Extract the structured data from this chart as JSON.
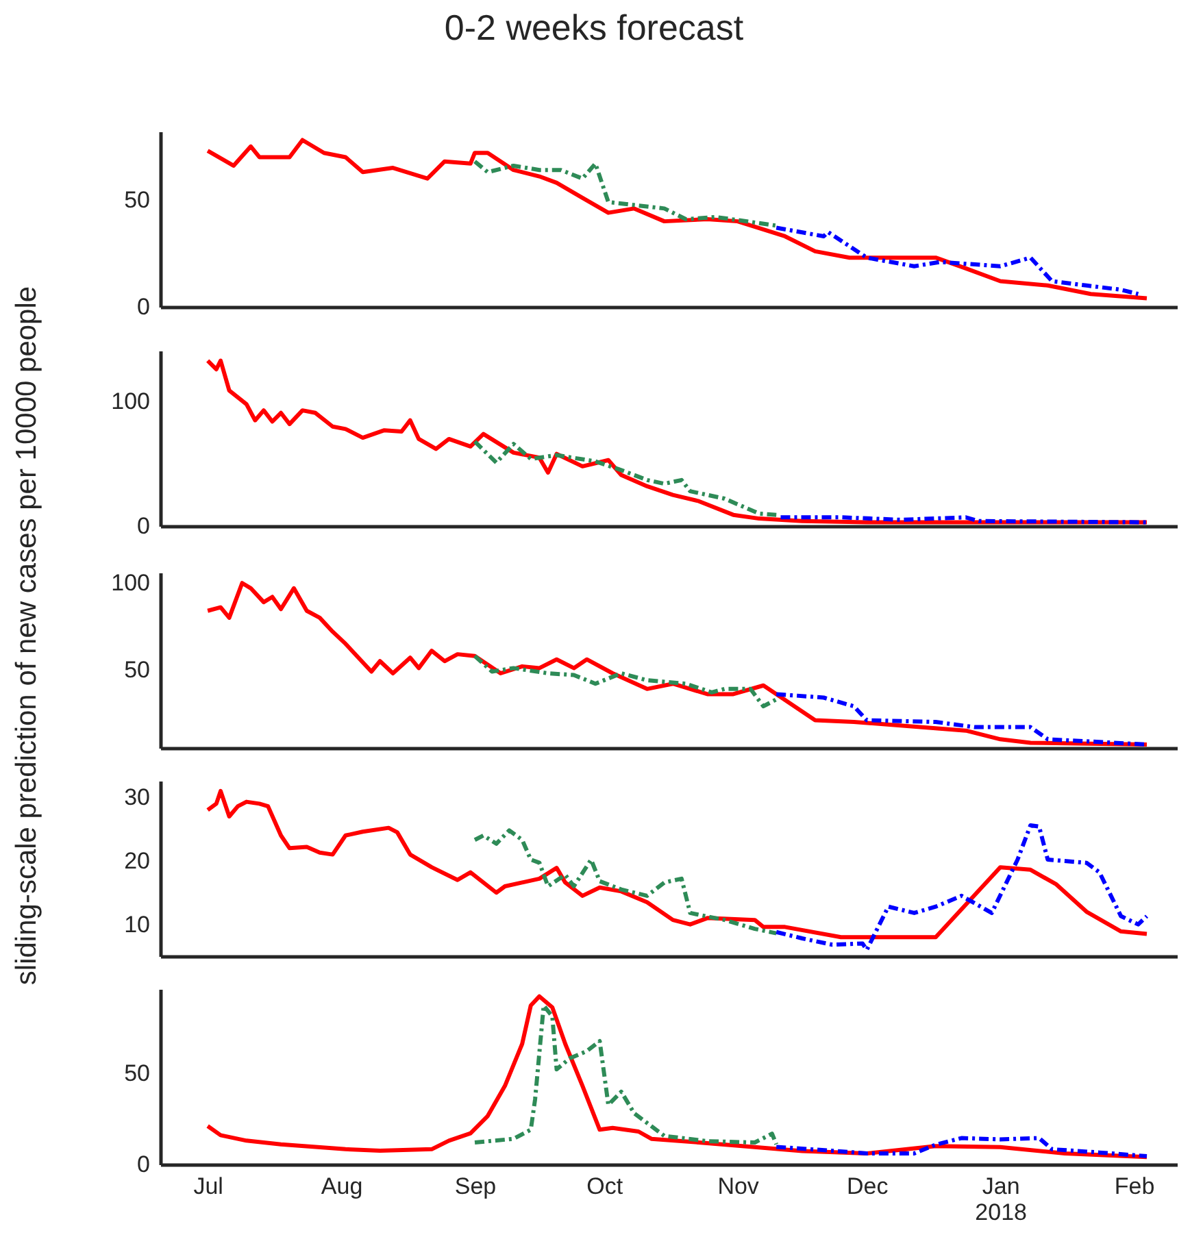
{
  "chart_data": [
    {
      "type": "line",
      "title": "0-2 weeks forecast",
      "xlim": [
        "2017-06-20",
        "2018-02-11"
      ],
      "ylim": [
        0,
        82
      ],
      "yticks": [
        0,
        50
      ],
      "tick_labels": "y",
      "series": [
        {
          "color": "#ff0000",
          "line_style": "solid",
          "x": [
            "2017-07-01",
            "2017-07-07",
            "2017-07-11",
            "2017-07-13",
            "2017-07-20",
            "2017-07-23",
            "2017-07-28",
            "2017-08-02",
            "2017-08-06",
            "2017-08-13",
            "2017-08-21",
            "2017-08-25",
            "2017-08-31",
            "2017-09-01",
            "2017-09-04",
            "2017-09-10",
            "2017-09-16",
            "2017-09-20",
            "2017-09-26",
            "2017-10-02",
            "2017-10-08",
            "2017-10-15",
            "2017-10-25",
            "2017-11-01",
            "2017-11-12",
            "2017-11-19",
            "2017-11-27",
            "2017-12-17",
            "2017-12-24",
            "2018-01-01",
            "2018-01-12",
            "2018-01-22",
            "2018-02-04"
          ],
          "values": [
            73,
            66,
            75,
            70,
            70,
            78,
            72,
            70,
            63,
            65,
            60,
            68,
            67,
            72,
            72,
            64,
            61,
            58,
            51,
            44,
            46,
            40,
            41,
            40,
            33,
            26,
            23,
            23,
            18,
            12,
            10,
            6,
            4
          ]
        },
        {
          "color": "#2e8b57",
          "line_style": "dashed",
          "x": [
            "2017-09-01",
            "2017-09-04",
            "2017-09-10",
            "2017-09-16",
            "2017-09-21",
            "2017-09-26",
            "2017-09-29",
            "2017-10-02",
            "2017-10-15",
            "2017-10-20",
            "2017-10-27",
            "2017-11-10"
          ],
          "values": [
            68,
            63,
            66,
            64,
            64,
            60,
            67,
            49,
            46,
            41,
            42,
            38
          ]
        },
        {
          "color": "#0000ff",
          "line_style": "dashed",
          "x": [
            "2017-11-10",
            "2017-11-21",
            "2017-11-22",
            "2017-12-01",
            "2017-12-12",
            "2017-12-18",
            "2018-01-01",
            "2018-01-08",
            "2018-01-13",
            "2018-01-21",
            "2018-01-29",
            "2018-02-02"
          ],
          "values": [
            37,
            33,
            35,
            23,
            19,
            21,
            19,
            23,
            12,
            10,
            8,
            6
          ]
        }
      ]
    },
    {
      "type": "line",
      "xlim": [
        "2017-06-20",
        "2018-02-11"
      ],
      "ylim": [
        0,
        141
      ],
      "yticks": [
        0,
        100
      ],
      "tick_labels": "y",
      "series": [
        {
          "color": "#ff0000",
          "line_style": "solid",
          "x": [
            "2017-07-01",
            "2017-07-03",
            "2017-07-04",
            "2017-07-06",
            "2017-07-10",
            "2017-07-12",
            "2017-07-14",
            "2017-07-16",
            "2017-07-18",
            "2017-07-20",
            "2017-07-23",
            "2017-07-26",
            "2017-07-30",
            "2017-08-02",
            "2017-08-06",
            "2017-08-11",
            "2017-08-15",
            "2017-08-17",
            "2017-08-19",
            "2017-08-23",
            "2017-08-26",
            "2017-08-31",
            "2017-09-03",
            "2017-09-10",
            "2017-09-16",
            "2017-09-18",
            "2017-09-20",
            "2017-09-26",
            "2017-10-02",
            "2017-10-05",
            "2017-10-11",
            "2017-10-17",
            "2017-10-23",
            "2017-10-31",
            "2017-11-06",
            "2017-11-16",
            "2017-12-01",
            "2018-02-04"
          ],
          "values": [
            133,
            126,
            133,
            109,
            98,
            85,
            93,
            84,
            91,
            82,
            93,
            91,
            80,
            78,
            71,
            77,
            76,
            85,
            70,
            62,
            70,
            64,
            74,
            59,
            55,
            43,
            58,
            48,
            53,
            41,
            32,
            25,
            20,
            9,
            6,
            4,
            3,
            3
          ]
        },
        {
          "color": "#2e8b57",
          "line_style": "dashed",
          "x": [
            "2017-09-01",
            "2017-09-06",
            "2017-09-10",
            "2017-09-14",
            "2017-09-20",
            "2017-09-29",
            "2017-10-05",
            "2017-10-11",
            "2017-10-15",
            "2017-10-19",
            "2017-10-21",
            "2017-10-29",
            "2017-11-06",
            "2017-11-10"
          ],
          "values": [
            68,
            51,
            66,
            54,
            57,
            52,
            45,
            37,
            34,
            37,
            28,
            22,
            10,
            9
          ]
        },
        {
          "color": "#0000ff",
          "line_style": "dashed",
          "x": [
            "2017-11-11",
            "2017-11-25",
            "2017-12-09",
            "2017-12-24",
            "2017-12-27",
            "2018-02-04"
          ],
          "values": [
            7,
            7,
            5,
            7,
            4,
            3
          ]
        }
      ]
    },
    {
      "type": "line",
      "ylabel": "sliding-scale prediction of new cases per 10000 people",
      "xlim": [
        "2017-06-20",
        "2018-02-11"
      ],
      "ylim": [
        5,
        106
      ],
      "yticks": [
        50,
        100
      ],
      "tick_labels": "y",
      "series": [
        {
          "color": "#ff0000",
          "line_style": "solid",
          "x": [
            "2017-07-01",
            "2017-07-04",
            "2017-07-06",
            "2017-07-09",
            "2017-07-11",
            "2017-07-14",
            "2017-07-16",
            "2017-07-18",
            "2017-07-21",
            "2017-07-24",
            "2017-07-27",
            "2017-07-30",
            "2017-08-02",
            "2017-08-08",
            "2017-08-10",
            "2017-08-13",
            "2017-08-17",
            "2017-08-19",
            "2017-08-22",
            "2017-08-25",
            "2017-08-28",
            "2017-09-01",
            "2017-09-07",
            "2017-09-12",
            "2017-09-16",
            "2017-09-20",
            "2017-09-24",
            "2017-09-27",
            "2017-10-03",
            "2017-10-11",
            "2017-10-17",
            "2017-10-25",
            "2017-10-31",
            "2017-11-07",
            "2017-11-19",
            "2017-11-28",
            "2017-12-24",
            "2018-01-01",
            "2018-01-08",
            "2018-02-04"
          ],
          "values": [
            84,
            86,
            80,
            100,
            97,
            89,
            92,
            85,
            97,
            84,
            80,
            72,
            65,
            49,
            55,
            48,
            57,
            51,
            61,
            55,
            59,
            58,
            48,
            52,
            51,
            56,
            51,
            56,
            48,
            39,
            42,
            36,
            36,
            41,
            21,
            20,
            15,
            10,
            8,
            7
          ]
        },
        {
          "color": "#2e8b57",
          "line_style": "dashed",
          "x": [
            "2017-09-01",
            "2017-09-05",
            "2017-09-10",
            "2017-09-18",
            "2017-09-24",
            "2017-09-29",
            "2017-10-05",
            "2017-10-11",
            "2017-10-20",
            "2017-10-26",
            "2017-10-29",
            "2017-11-04",
            "2017-11-07",
            "2017-11-10"
          ],
          "values": [
            58,
            49,
            51,
            48,
            47,
            42,
            48,
            44,
            42,
            37,
            39,
            39,
            29,
            33
          ]
        },
        {
          "color": "#0000ff",
          "line_style": "dashed",
          "x": [
            "2017-11-10",
            "2017-11-21",
            "2017-11-28",
            "2017-12-01",
            "2017-12-17",
            "2017-12-26",
            "2018-01-08",
            "2018-01-12",
            "2018-02-04"
          ],
          "values": [
            36,
            34,
            29,
            21,
            20,
            17,
            17,
            10,
            7
          ]
        }
      ]
    },
    {
      "type": "line",
      "xlim": [
        "2017-06-20",
        "2018-02-11"
      ],
      "ylim": [
        5,
        32.6
      ],
      "yticks": [
        10,
        20,
        30
      ],
      "tick_labels": "y",
      "series": [
        {
          "color": "#ff0000",
          "line_style": "solid",
          "x": [
            "2017-07-01",
            "2017-07-03",
            "2017-07-04",
            "2017-07-06",
            "2017-07-08",
            "2017-07-10",
            "2017-07-13",
            "2017-07-15",
            "2017-07-18",
            "2017-07-20",
            "2017-07-24",
            "2017-07-27",
            "2017-07-30",
            "2017-08-02",
            "2017-08-06",
            "2017-08-12",
            "2017-08-14",
            "2017-08-17",
            "2017-08-22",
            "2017-08-28",
            "2017-08-31",
            "2017-09-06",
            "2017-09-08",
            "2017-09-16",
            "2017-09-20",
            "2017-09-22",
            "2017-09-26",
            "2017-09-30",
            "2017-10-05",
            "2017-10-11",
            "2017-10-17",
            "2017-10-21",
            "2017-10-25",
            "2017-11-05",
            "2017-11-07",
            "2017-11-12",
            "2017-11-25",
            "2017-12-17",
            "2018-01-01",
            "2018-01-08",
            "2018-01-14",
            "2018-01-21",
            "2018-01-29",
            "2018-02-04"
          ],
          "values": [
            28,
            29,
            31,
            27,
            28.6,
            29.3,
            29,
            28.6,
            24,
            22,
            22.2,
            21.3,
            21,
            24,
            24.6,
            25.2,
            24.5,
            21,
            19,
            17,
            18.2,
            15,
            16,
            17.2,
            18.9,
            16.6,
            14.5,
            15.8,
            15.2,
            13.5,
            10.7,
            10,
            11,
            10.7,
            9.6,
            9.6,
            8,
            8,
            19,
            18.6,
            16.3,
            12,
            8.9,
            8.5
          ]
        },
        {
          "color": "#2e8b57",
          "line_style": "dashed",
          "x": [
            "2017-09-01",
            "2017-09-03",
            "2017-09-06",
            "2017-09-09",
            "2017-09-12",
            "2017-09-14",
            "2017-09-16",
            "2017-09-18",
            "2017-09-22",
            "2017-09-24",
            "2017-09-28",
            "2017-09-30",
            "2017-10-05",
            "2017-10-11",
            "2017-10-15",
            "2017-10-19",
            "2017-10-21",
            "2017-10-29",
            "2017-11-05",
            "2017-11-10"
          ],
          "values": [
            23.3,
            24,
            22.7,
            24.8,
            23.3,
            20.2,
            19.7,
            16,
            17.8,
            16,
            20.2,
            16.8,
            15.5,
            14.5,
            16.6,
            17.2,
            11.8,
            10.7,
            9.3,
            8.6
          ]
        },
        {
          "color": "#0000ff",
          "line_style": "dashed",
          "x": [
            "2017-11-10",
            "2017-11-16",
            "2017-11-23",
            "2017-11-30",
            "2017-12-01",
            "2017-12-06",
            "2017-12-12",
            "2017-12-17",
            "2017-12-23",
            "2017-12-30",
            "2018-01-05",
            "2018-01-08",
            "2018-01-10",
            "2018-01-12",
            "2018-01-21",
            "2018-01-24",
            "2018-01-29",
            "2018-02-02",
            "2018-02-04"
          ],
          "values": [
            8.8,
            7.8,
            6.8,
            7,
            6,
            12.8,
            11.8,
            12.8,
            14.5,
            11.8,
            20.2,
            25.6,
            25.4,
            20.2,
            19.7,
            18.2,
            11.3,
            10,
            11.3
          ]
        }
      ]
    },
    {
      "type": "line",
      "xlim": [
        "2017-06-20",
        "2018-02-11"
      ],
      "ylim": [
        0,
        96
      ],
      "yticks": [
        0,
        50
      ],
      "xticks": [
        {
          "value": "2017-07-01",
          "label": "Jul"
        },
        {
          "value": "2017-08-01",
          "label": "Aug"
        },
        {
          "value": "2017-09-01",
          "label": "Sep"
        },
        {
          "value": "2017-10-01",
          "label": "Oct"
        },
        {
          "value": "2017-11-01",
          "label": "Nov"
        },
        {
          "value": "2017-12-01",
          "label": "Dec"
        },
        {
          "value": "2018-01-01",
          "label": "Jan\n2018"
        },
        {
          "value": "2018-02-01",
          "label": "Feb"
        }
      ],
      "series": [
        {
          "color": "#ff0000",
          "line_style": "solid",
          "x": [
            "2017-07-01",
            "2017-07-04",
            "2017-07-10",
            "2017-07-18",
            "2017-08-02",
            "2017-08-10",
            "2017-08-22",
            "2017-08-26",
            "2017-08-31",
            "2017-09-04",
            "2017-09-08",
            "2017-09-12",
            "2017-09-14",
            "2017-09-16",
            "2017-09-19",
            "2017-09-22",
            "2017-09-26",
            "2017-09-30",
            "2017-10-03",
            "2017-10-09",
            "2017-10-12",
            "2017-10-23",
            "2017-11-05",
            "2017-11-16",
            "2017-12-01",
            "2017-12-17",
            "2018-01-01",
            "2018-01-16",
            "2018-02-04"
          ],
          "values": [
            21,
            16,
            13,
            11,
            8.3,
            7.5,
            8.3,
            13,
            17,
            26.5,
            43,
            66,
            87,
            92,
            86,
            66,
            43,
            19,
            20,
            18,
            14,
            12,
            9.5,
            7.3,
            6,
            10,
            9.5,
            6,
            4
          ]
        },
        {
          "color": "#2e8b57",
          "line_style": "dashed",
          "x": [
            "2017-09-01",
            "2017-09-10",
            "2017-09-14",
            "2017-09-15",
            "2017-09-17",
            "2017-09-19",
            "2017-09-20",
            "2017-09-23",
            "2017-09-27",
            "2017-09-30",
            "2017-10-02",
            "2017-10-05",
            "2017-10-08",
            "2017-10-15",
            "2017-10-25",
            "2017-11-05",
            "2017-11-09",
            "2017-11-10"
          ],
          "values": [
            12,
            14,
            19,
            35.6,
            87,
            81,
            52,
            58,
            62,
            67.5,
            32.6,
            39.8,
            28,
            15.6,
            12.7,
            12,
            16.8,
            11
          ]
        },
        {
          "color": "#0000ff",
          "line_style": "dashed",
          "x": [
            "2017-11-10",
            "2017-11-24",
            "2017-12-01",
            "2017-12-12",
            "2017-12-17",
            "2017-12-23",
            "2018-01-01",
            "2018-01-10",
            "2018-01-13",
            "2018-01-24",
            "2018-02-04"
          ],
          "values": [
            9.6,
            7.3,
            6,
            6,
            10.8,
            14.4,
            13.7,
            14.4,
            8.3,
            6.5,
            4.5
          ]
        }
      ]
    }
  ]
}
